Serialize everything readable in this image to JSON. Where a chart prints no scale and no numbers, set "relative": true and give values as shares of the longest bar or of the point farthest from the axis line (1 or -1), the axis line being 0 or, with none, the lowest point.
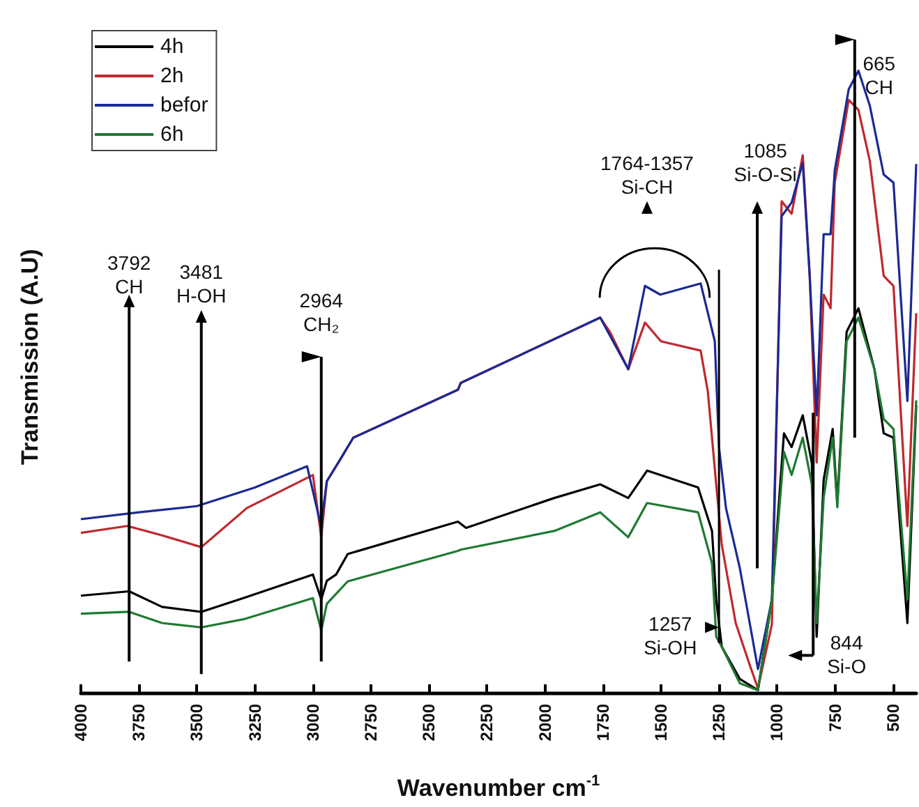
{
  "chart_data": {
    "type": "line",
    "relative": true,
    "xlabel": "Wavenumber cm$^{-1}$",
    "ylabel": "Transmission (A.U)",
    "legend": "top left",
    "grid": false,
    "xlim": [
      4000,
      400
    ],
    "xticks": [
      4000,
      3750,
      3500,
      3250,
      3000,
      2750,
      2500,
      2250,
      2000,
      1750,
      1500,
      1250,
      1000,
      750,
      500
    ],
    "series": [
      {
        "name": "4h",
        "color": "#000000",
        "x": [
          4000,
          3792,
          3650,
          3481,
          3300,
          3000,
          2964,
          2940,
          2900,
          2850,
          2375,
          2340,
          1960,
          1762,
          1641,
          1560,
          1340,
          1280,
          1262,
          1238,
          1160,
          1082,
          1022,
          970,
          937,
          889,
          850,
          829,
          799,
          760,
          740,
          700,
          649,
          580,
          540,
          498,
          438,
          400
        ],
        "values": [
          0.156,
          0.163,
          0.138,
          0.13,
          0.152,
          0.19,
          0.15,
          0.18,
          0.19,
          0.223,
          0.275,
          0.265,
          0.313,
          0.335,
          0.313,
          0.357,
          0.33,
          0.26,
          0.15,
          0.074,
          0.022,
          0.004,
          0.15,
          0.417,
          0.395,
          0.446,
          0.37,
          0.09,
          0.342,
          0.424,
          0.305,
          0.58,
          0.618,
          0.52,
          0.417,
          0.41,
          0.112,
          0.462
        ]
      },
      {
        "name": "2h",
        "color": "#c0282d",
        "x": [
          4000,
          3800,
          3650,
          3481,
          3284,
          3000,
          2964,
          2940,
          2887,
          2826,
          2375,
          2363,
          1762,
          1720,
          1641,
          1569,
          1500,
          1329,
          1298,
          1262,
          1238,
          1178,
          1118,
          1082,
          1022,
          980,
          937,
          889,
          859,
          829,
          799,
          769,
          751,
          691,
          649,
          600,
          540,
          498,
          438,
          400
        ],
        "values": [
          0.257,
          0.268,
          0.253,
          0.234,
          0.297,
          0.35,
          0.25,
          0.34,
          0.372,
          0.41,
          0.487,
          0.498,
          0.603,
          0.58,
          0.52,
          0.595,
          0.565,
          0.55,
          0.484,
          0.335,
          0.238,
          0.112,
          0.045,
          0.007,
          0.11,
          0.79,
          0.77,
          0.864,
          0.67,
          0.37,
          0.64,
          0.618,
          0.82,
          0.953,
          0.937,
          0.855,
          0.67,
          0.654,
          0.268,
          0.61
        ]
      },
      {
        "name": "befor",
        "color": "#1a2a94",
        "x": [
          4000,
          3750,
          3500,
          3250,
          3025,
          2965,
          2940,
          2887,
          2826,
          2375,
          2363,
          1762,
          1641,
          1569,
          1503,
          1329,
          1268,
          1250,
          1220,
          1160,
          1082,
          1022,
          980,
          937,
          889,
          859,
          829,
          799,
          769,
          751,
          691,
          649,
          600,
          540,
          498,
          438,
          400
        ],
        "values": [
          0.279,
          0.29,
          0.3,
          0.33,
          0.364,
          0.268,
          0.34,
          0.372,
          0.41,
          0.487,
          0.498,
          0.603,
          0.52,
          0.654,
          0.64,
          0.658,
          0.565,
          0.395,
          0.297,
          0.2,
          0.038,
          0.15,
          0.766,
          0.788,
          0.852,
          0.67,
          0.446,
          0.737,
          0.737,
          0.84,
          0.97,
          1,
          0.944,
          0.833,
          0.82,
          0.469,
          0.85
        ]
      },
      {
        "name": "6h",
        "color": "#1e7a32",
        "x": [
          4000,
          3792,
          3650,
          3481,
          3300,
          3000,
          2964,
          2940,
          2850,
          2375,
          2363,
          1960,
          1762,
          1641,
          1560,
          1340,
          1280,
          1262,
          1238,
          1160,
          1082,
          1022,
          970,
          937,
          889,
          850,
          829,
          799,
          760,
          740,
          700,
          649,
          580,
          540,
          498,
          438,
          400
        ],
        "values": [
          0.127,
          0.13,
          0.112,
          0.105,
          0.118,
          0.152,
          0.1,
          0.143,
          0.179,
          0.228,
          0.23,
          0.26,
          0.29,
          0.25,
          0.305,
          0.29,
          0.208,
          0.09,
          0.074,
          0.015,
          0.004,
          0.15,
          0.387,
          0.35,
          0.41,
          0.335,
          0.112,
          0.313,
          0.41,
          0.298,
          0.565,
          0.603,
          0.52,
          0.44,
          0.424,
          0.15,
          0.47
        ]
      }
    ],
    "annotations": [
      "3792\nCH",
      "3481\nH-OH",
      "2964\nCH₂",
      "1764-1357\nSi-CH",
      "1085\nSi-O-Si",
      "665\nCH",
      "1257\nSi-OH",
      "844\nSi-O"
    ]
  }
}
